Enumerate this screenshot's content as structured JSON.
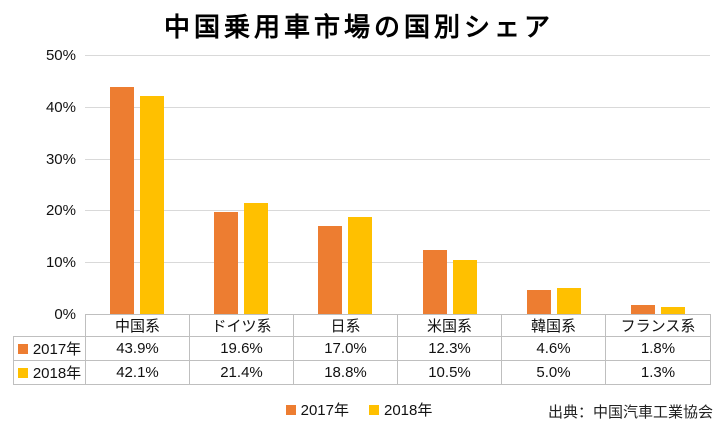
{
  "chart_data": {
    "type": "bar",
    "title": "中国乗用車市場の国別シェア",
    "categories": [
      "中国系",
      "ドイツ系",
      "日系",
      "米国系",
      "韓国系",
      "フランス系"
    ],
    "series": [
      {
        "name": "2017年",
        "color": "#ED7D31",
        "values": [
          43.9,
          19.6,
          17.0,
          12.3,
          4.6,
          1.8
        ],
        "display": [
          "43.9%",
          "19.6%",
          "17.0%",
          "12.3%",
          "4.6%",
          "1.8%"
        ]
      },
      {
        "name": "2018年",
        "color": "#FFC000",
        "values": [
          42.1,
          21.4,
          18.8,
          10.5,
          5.0,
          1.3
        ],
        "display": [
          "42.1%",
          "21.4%",
          "18.8%",
          "10.5%",
          "5.0%",
          "1.3%"
        ]
      }
    ],
    "y_axis": {
      "min": 0,
      "max": 50,
      "step": 10,
      "tick_labels": [
        "0%",
        "10%",
        "20%",
        "30%",
        "40%",
        "50%"
      ]
    },
    "grid": true,
    "legend_position": "bottom",
    "show_data_table": true
  },
  "source": {
    "text": "出典：中国汽車工業協会"
  },
  "colors": {
    "gridline": "#D9D9D9",
    "table_border": "#BFBFBF",
    "background": "#FFFFFF",
    "text": "#111111"
  }
}
